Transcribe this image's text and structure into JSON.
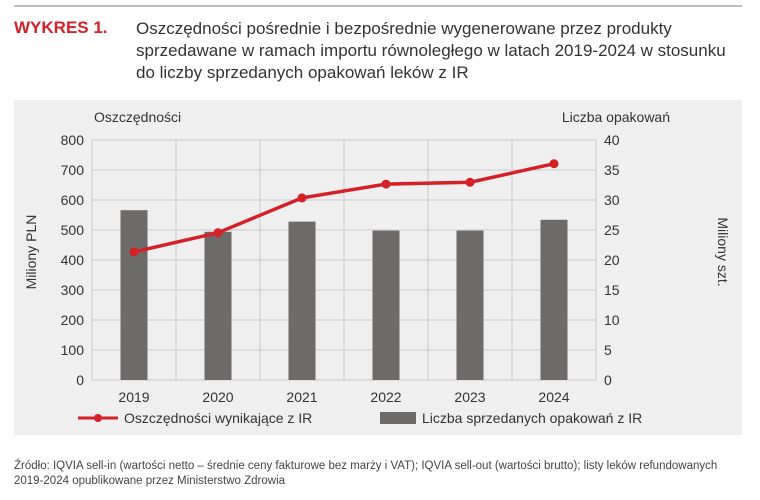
{
  "header": {
    "label": "WYKRES 1.",
    "title": "Oszczędności pośrednie i bezpośrednie wygenerowane przez produkty sprzedawane w ramach importu równoległego w latach 2019-2024 w stosunku do liczby sprzedanych opakowań leków z IR"
  },
  "source": "Źródło: IQVIA sell-in (wartości netto – średnie ceny fakturowe bez marży i VAT); IQVIA sell-out (wartości brutto); listy leków refundowanych 2019-2024 opublikowane przez Ministerstwo Zdrowia",
  "chart_data": {
    "type": "bar+line",
    "categories": [
      "2019",
      "2020",
      "2021",
      "2022",
      "2023",
      "2024"
    ],
    "left_axis_title": "Oszczędności",
    "left_ylabel": "Miliony PLN",
    "left_ylim": [
      0,
      800
    ],
    "left_ticks": [
      "0",
      "100",
      "200",
      "300",
      "400",
      "500",
      "600",
      "700",
      "800"
    ],
    "right_axis_title": "Liczba opakowań",
    "right_ylabel": "Miliony szt.",
    "right_ylim": [
      0,
      40
    ],
    "right_ticks": [
      "0",
      "5",
      "10",
      "15",
      "20",
      "25",
      "30",
      "35",
      "40"
    ],
    "grid": true,
    "legend_position": "bottom",
    "series": [
      {
        "name": "Oszczędności wynikające z IR",
        "type": "line",
        "axis": "left",
        "color": "#d42027",
        "values": [
          427,
          491,
          607,
          653,
          659,
          721
        ]
      },
      {
        "name": "Liczba sprzedanych opakowań z IR",
        "type": "bar",
        "axis": "right",
        "color": "#6d6b69",
        "values": [
          28.3,
          24.7,
          26.4,
          24.9,
          24.9,
          26.7
        ]
      }
    ]
  }
}
